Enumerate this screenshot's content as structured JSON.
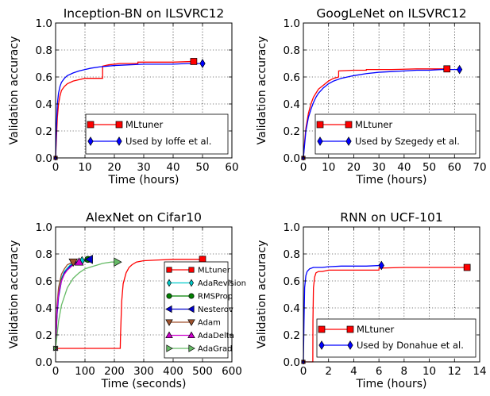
{
  "chart_data": [
    {
      "type": "line",
      "title": "Inception-BN on ILSVRC12",
      "xlabel": "Time (hours)",
      "ylabel": "Validation accuracy",
      "xlim": [
        0,
        60
      ],
      "ylim": [
        0.0,
        1.0
      ],
      "xticks": [
        0,
        10,
        20,
        30,
        40,
        50,
        60
      ],
      "yticks": [
        0.0,
        0.2,
        0.4,
        0.6,
        0.8,
        1.0
      ],
      "grid": true,
      "legend_position": "bottom-right",
      "series": [
        {
          "name": "MLtuner",
          "color": "#ff0000",
          "marker": "square",
          "x": [
            0,
            0.3,
            0.6,
            1,
            1.5,
            2,
            3,
            4,
            6,
            8,
            10,
            16,
            16.01,
            18,
            22,
            28,
            28.01,
            35,
            40,
            47
          ],
          "y": [
            0.0,
            0.15,
            0.3,
            0.4,
            0.46,
            0.5,
            0.53,
            0.55,
            0.57,
            0.58,
            0.59,
            0.59,
            0.68,
            0.69,
            0.7,
            0.7,
            0.71,
            0.71,
            0.71,
            0.715
          ]
        },
        {
          "name": "Used by Ioffe et al.",
          "color": "#0000ff",
          "marker": "diamond",
          "x": [
            0,
            0.3,
            0.6,
            1,
            1.5,
            2,
            3,
            4,
            6,
            8,
            10,
            12,
            15,
            20,
            25,
            30,
            35,
            40,
            45,
            50
          ],
          "y": [
            0.0,
            0.25,
            0.4,
            0.48,
            0.53,
            0.56,
            0.59,
            0.61,
            0.63,
            0.645,
            0.655,
            0.665,
            0.675,
            0.685,
            0.69,
            0.695,
            0.695,
            0.695,
            0.7,
            0.7
          ]
        }
      ]
    },
    {
      "type": "line",
      "title": "GoogLeNet on ILSVRC12",
      "xlabel": "Time (hours)",
      "ylabel": "Validation accuracy",
      "xlim": [
        0,
        70
      ],
      "ylim": [
        0.0,
        1.0
      ],
      "xticks": [
        0,
        10,
        20,
        30,
        40,
        50,
        60,
        70
      ],
      "yticks": [
        0.0,
        0.2,
        0.4,
        0.6,
        0.8,
        1.0
      ],
      "grid": true,
      "legend_position": "bottom-right",
      "series": [
        {
          "name": "MLtuner",
          "color": "#ff0000",
          "marker": "square",
          "x": [
            0,
            0.5,
            1,
            2,
            3,
            4,
            5,
            6,
            8,
            10,
            12,
            14,
            14.01,
            20,
            25,
            25.01,
            35,
            45,
            57
          ],
          "y": [
            0.0,
            0.12,
            0.22,
            0.33,
            0.4,
            0.45,
            0.48,
            0.51,
            0.54,
            0.57,
            0.59,
            0.6,
            0.645,
            0.65,
            0.65,
            0.655,
            0.655,
            0.66,
            0.66
          ]
        },
        {
          "name": "Used by Szegedy et al.",
          "color": "#0000ff",
          "marker": "diamond",
          "x": [
            0,
            0.5,
            1,
            2,
            3,
            4,
            5,
            6,
            8,
            10,
            12,
            15,
            20,
            25,
            30,
            35,
            40,
            45,
            50,
            55,
            62
          ],
          "y": [
            0.0,
            0.1,
            0.2,
            0.3,
            0.36,
            0.41,
            0.45,
            0.48,
            0.52,
            0.55,
            0.57,
            0.59,
            0.61,
            0.625,
            0.635,
            0.64,
            0.645,
            0.65,
            0.65,
            0.655,
            0.655
          ]
        }
      ]
    },
    {
      "type": "line",
      "title": "AlexNet on Cifar10",
      "xlabel": "Time (seconds)",
      "ylabel": "Validation accuracy",
      "xlim": [
        0,
        600
      ],
      "ylim": [
        0.0,
        1.0
      ],
      "xticks": [
        0,
        100,
        200,
        300,
        400,
        500,
        600
      ],
      "yticks": [
        0.0,
        0.2,
        0.4,
        0.6,
        0.8,
        1.0
      ],
      "grid": true,
      "legend_position": "right",
      "series": [
        {
          "name": "MLtuner",
          "color": "#ff0000",
          "marker": "square",
          "x": [
            0,
            220,
            221,
            225,
            230,
            240,
            250,
            260,
            275,
            300,
            350,
            400,
            450,
            500
          ],
          "y": [
            0.1,
            0.1,
            0.2,
            0.45,
            0.58,
            0.66,
            0.7,
            0.72,
            0.74,
            0.75,
            0.755,
            0.76,
            0.76,
            0.76
          ]
        },
        {
          "name": "AdaRevision",
          "color": "#00cccc",
          "marker": "diamond",
          "x": [
            0,
            5,
            10,
            20,
            30,
            50,
            70,
            90
          ],
          "y": [
            0.1,
            0.4,
            0.52,
            0.62,
            0.67,
            0.72,
            0.74,
            0.75
          ]
        },
        {
          "name": "RMSProp",
          "color": "#008000",
          "marker": "circle",
          "x": [
            0,
            5,
            10,
            20,
            30,
            50,
            70,
            90,
            110
          ],
          "y": [
            0.1,
            0.38,
            0.5,
            0.61,
            0.66,
            0.71,
            0.73,
            0.75,
            0.76
          ]
        },
        {
          "name": "Nesterov",
          "color": "#0000cc",
          "marker": "triangle-left",
          "x": [
            0,
            5,
            10,
            20,
            30,
            50,
            70,
            90,
            115
          ],
          "y": [
            0.1,
            0.35,
            0.48,
            0.6,
            0.66,
            0.71,
            0.74,
            0.75,
            0.76
          ]
        },
        {
          "name": "Adam",
          "color": "#a0522d",
          "marker": "triangle-down",
          "x": [
            0,
            5,
            10,
            20,
            30,
            40,
            50,
            60
          ],
          "y": [
            0.1,
            0.42,
            0.55,
            0.65,
            0.69,
            0.72,
            0.73,
            0.74
          ]
        },
        {
          "name": "AdaDelta",
          "color": "#cc00cc",
          "marker": "triangle-up",
          "x": [
            0,
            5,
            10,
            20,
            30,
            40,
            50,
            60,
            70,
            80
          ],
          "y": [
            0.1,
            0.4,
            0.5,
            0.6,
            0.65,
            0.68,
            0.7,
            0.72,
            0.73,
            0.74
          ]
        },
        {
          "name": "AdaGrad",
          "color": "#66bb66",
          "marker": "triangle-right",
          "x": [
            0,
            10,
            20,
            40,
            60,
            80,
            100,
            130,
            160,
            190,
            210
          ],
          "y": [
            0.1,
            0.3,
            0.42,
            0.55,
            0.62,
            0.66,
            0.69,
            0.71,
            0.73,
            0.74,
            0.74
          ]
        }
      ]
    },
    {
      "type": "line",
      "title": "RNN on UCF-101",
      "xlabel": "Time (hours)",
      "ylabel": "Validation accuracy",
      "xlim": [
        0,
        14
      ],
      "ylim": [
        0.0,
        1.0
      ],
      "xticks": [
        0,
        2,
        4,
        6,
        8,
        10,
        12,
        14
      ],
      "yticks": [
        0.0,
        0.2,
        0.4,
        0.6,
        0.8,
        1.0
      ],
      "grid": true,
      "legend_position": "bottom-right",
      "series": [
        {
          "name": "MLtuner",
          "color": "#ff0000",
          "marker": "square",
          "x": [
            0,
            0.75,
            0.76,
            0.8,
            0.9,
            1.0,
            1.2,
            1.5,
            2.0,
            3.0,
            4.0,
            6.0,
            6.01,
            8.0,
            10.0,
            13.0
          ],
          "y": [
            0.0,
            0.0,
            0.3,
            0.55,
            0.63,
            0.66,
            0.67,
            0.67,
            0.68,
            0.68,
            0.68,
            0.68,
            0.695,
            0.7,
            0.7,
            0.7
          ]
        },
        {
          "name": "Used by Donahue et al.",
          "color": "#0000ff",
          "marker": "diamond",
          "x": [
            0,
            0.05,
            0.1,
            0.2,
            0.3,
            0.5,
            0.8,
            1.0,
            1.5,
            2.0,
            3.0,
            4.0,
            5.0,
            6.2
          ],
          "y": [
            0.0,
            0.3,
            0.55,
            0.64,
            0.67,
            0.69,
            0.7,
            0.7,
            0.7,
            0.705,
            0.71,
            0.71,
            0.71,
            0.715
          ]
        }
      ]
    }
  ]
}
